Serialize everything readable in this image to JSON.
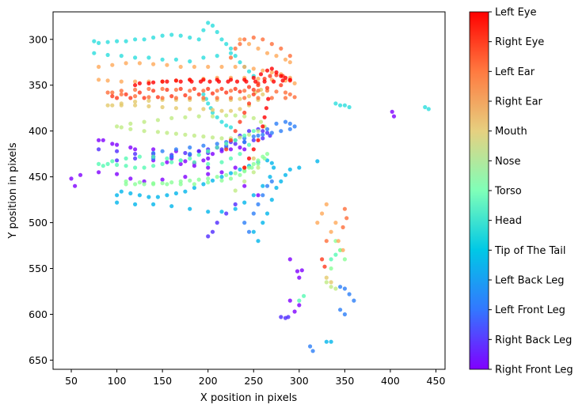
{
  "chart_data": {
    "type": "scatter",
    "title": "",
    "xlabel": "X position in pixels",
    "ylabel": "Y position in pixels",
    "xlim": [
      30,
      460
    ],
    "ylim": [
      660,
      270
    ],
    "y_inverted": true,
    "xticks": [
      50,
      100,
      150,
      200,
      250,
      300,
      350,
      400,
      450
    ],
    "yticks": [
      300,
      350,
      400,
      450,
      500,
      550,
      600,
      650
    ],
    "grid": false,
    "colormap": "rainbow",
    "colorbar_labels": [
      "Right Front Leg",
      "Right Back Leg",
      "Left Front Leg",
      "Left Back Leg",
      "Tip of The Tail",
      "Head",
      "Torso",
      "Nose",
      "Mouth",
      "Right Ear",
      "Left Ear",
      "Right Eye",
      "Left Eye"
    ],
    "series": [
      {
        "name": "Right Front Leg",
        "color": "#8000ff",
        "x": [
          50,
          54,
          60,
          80,
          100,
          115,
          130,
          150,
          175,
          200,
          215,
          230,
          240,
          235,
          225,
          215,
          205,
          200,
          195,
          185,
          175,
          160,
          140,
          120,
          100,
          85,
          80,
          95,
          115,
          140,
          165,
          190,
          210,
          200,
          185,
          170,
          155,
          140,
          240,
          255,
          290,
          298,
          300,
          303,
          290,
          300,
          295,
          402,
          404
        ],
        "y": [
          452,
          460,
          448,
          445,
          447,
          452,
          455,
          453,
          450,
          447,
          445,
          440,
          420,
          418,
          420,
          422,
          425,
          430,
          432,
          435,
          433,
          430,
          425,
          420,
          415,
          410,
          410,
          414,
          418,
          420,
          422,
          422,
          418,
          440,
          438,
          436,
          434,
          432,
          460,
          470,
          540,
          553,
          560,
          552,
          585,
          590,
          597,
          379,
          384
        ]
      },
      {
        "name": "Right Back Leg",
        "color": "#4f2bff",
        "x": [
          80,
          100,
          120,
          140,
          160,
          180,
          200,
          215,
          225,
          235,
          245,
          255,
          260,
          265,
          268,
          260,
          250,
          240,
          230,
          220,
          210,
          200,
          190,
          175,
          160,
          140,
          120,
          100,
          230,
          220,
          210,
          205,
          200,
          280,
          285,
          288
        ],
        "y": [
          420,
          422,
          425,
          428,
          428,
          426,
          424,
          420,
          412,
          405,
          400,
          398,
          400,
          402,
          405,
          408,
          410,
          412,
          414,
          416,
          418,
          420,
          422,
          424,
          426,
          428,
          430,
          432,
          480,
          490,
          500,
          510,
          515,
          603,
          604,
          603
        ]
      },
      {
        "name": "Left Front Leg",
        "color": "#2c7ef7",
        "x": [
          140,
          160,
          180,
          200,
          220,
          240,
          255,
          265,
          275,
          285,
          290,
          295,
          290,
          280,
          270,
          260,
          250,
          240,
          230,
          220,
          210,
          195,
          180,
          165,
          150,
          140,
          240,
          245,
          250,
          255,
          260,
          265,
          270,
          345,
          350,
          355,
          360,
          345,
          350,
          312,
          315
        ],
        "y": [
          430,
          428,
          425,
          422,
          418,
          412,
          405,
          398,
          392,
          390,
          392,
          395,
          398,
          400,
          402,
          404,
          406,
          408,
          410,
          412,
          414,
          416,
          418,
          420,
          422,
          424,
          500,
          510,
          490,
          480,
          470,
          460,
          455,
          570,
          572,
          578,
          585,
          595,
          600,
          635,
          640
        ]
      },
      {
        "name": "Left Back Leg",
        "color": "#00b5eb",
        "x": [
          100,
          120,
          140,
          160,
          180,
          200,
          215,
          230,
          240,
          250,
          260,
          268,
          272,
          270,
          265,
          255,
          245,
          235,
          225,
          215,
          205,
          195,
          185,
          175,
          165,
          155,
          145,
          135,
          125,
          115,
          105,
          100,
          250,
          255,
          260,
          265,
          270,
          275,
          280,
          285,
          290,
          300,
          320,
          330,
          335
        ],
        "y": [
          478,
          480,
          480,
          482,
          485,
          488,
          488,
          485,
          478,
          470,
          460,
          450,
          440,
          435,
          432,
          434,
          438,
          442,
          446,
          450,
          454,
          458,
          462,
          466,
          468,
          470,
          472,
          472,
          470,
          468,
          466,
          470,
          510,
          520,
          500,
          490,
          475,
          462,
          455,
          448,
          442,
          440,
          433,
          630,
          630
        ]
      },
      {
        "name": "Tip of The Tail",
        "color": "#2adddd",
        "x": [
          75,
          80,
          90,
          100,
          110,
          120,
          130,
          140,
          150,
          160,
          170,
          180,
          190,
          195,
          200,
          205,
          210,
          215,
          220,
          225,
          230,
          235,
          240,
          245,
          250,
          75,
          90,
          105,
          120,
          135,
          150,
          165,
          180,
          195,
          210,
          225,
          195,
          198,
          200,
          203,
          205,
          210,
          215,
          220,
          225,
          340,
          345,
          350,
          355,
          438,
          442
        ],
        "y": [
          302,
          304,
          303,
          302,
          302,
          300,
          300,
          298,
          296,
          295,
          296,
          298,
          300,
          290,
          282,
          285,
          292,
          300,
          305,
          310,
          318,
          325,
          330,
          335,
          340,
          315,
          317,
          318,
          320,
          320,
          322,
          322,
          324,
          320,
          318,
          315,
          360,
          365,
          370,
          375,
          380,
          385,
          390,
          394,
          396,
          370,
          372,
          372,
          374,
          374,
          376
        ]
      },
      {
        "name": "Head",
        "color": "#55fab3",
        "x": [
          80,
          95,
          110,
          125,
          140,
          155,
          170,
          185,
          200,
          215,
          225,
          235,
          245,
          250,
          240,
          230,
          220,
          210,
          200,
          190,
          180,
          170,
          160,
          150,
          140,
          130,
          120,
          110,
          100,
          90,
          85,
          300,
          305,
          335,
          340,
          345
        ],
        "y": [
          436,
          433,
          430,
          428,
          428,
          430,
          432,
          434,
          436,
          434,
          430,
          425,
          415,
          400,
          405,
          410,
          414,
          418,
          422,
          426,
          430,
          432,
          434,
          436,
          438,
          440,
          440,
          438,
          437,
          436,
          438,
          585,
          580,
          540,
          535,
          530
        ]
      },
      {
        "name": "Torso",
        "color": "#8aff97",
        "x": [
          110,
          125,
          140,
          155,
          170,
          185,
          200,
          215,
          225,
          235,
          240,
          245,
          250,
          255,
          260,
          265,
          262,
          255,
          248,
          240,
          230,
          220,
          210,
          200,
          190,
          180,
          170,
          160,
          150,
          140,
          130,
          120,
          110,
          340,
          345,
          350,
          335
        ],
        "y": [
          455,
          456,
          457,
          458,
          458,
          458,
          456,
          454,
          452,
          448,
          444,
          440,
          436,
          432,
          428,
          425,
          430,
          436,
          440,
          443,
          446,
          448,
          450,
          452,
          453,
          454,
          455,
          456,
          457,
          458,
          458,
          458,
          458,
          520,
          530,
          540,
          550
        ]
      },
      {
        "name": "Nose",
        "color": "#bfeb83",
        "x": [
          100,
          115,
          130,
          145,
          160,
          175,
          190,
          205,
          220,
          230,
          240,
          250,
          258,
          262,
          255,
          245,
          235,
          225,
          215,
          205,
          195,
          185,
          175,
          165,
          155,
          145,
          130,
          115,
          105,
          230,
          240,
          250,
          255,
          330,
          335,
          340
        ],
        "y": [
          395,
          392,
          390,
          388,
          386,
          385,
          384,
          384,
          383,
          383,
          384,
          386,
          390,
          395,
          400,
          404,
          407,
          408,
          408,
          407,
          406,
          405,
          404,
          403,
          402,
          401,
          400,
          398,
          396,
          465,
          455,
          445,
          440,
          565,
          570,
          572
        ]
      },
      {
        "name": "Mouth",
        "color": "#e3c96c",
        "x": [
          90,
          105,
          120,
          135,
          150,
          165,
          180,
          195,
          210,
          225,
          235,
          245,
          252,
          258,
          260,
          255,
          245,
          235,
          225,
          215,
          205,
          195,
          180,
          165,
          150,
          135,
          120,
          105,
          95,
          240,
          250,
          330,
          335
        ],
        "y": [
          372,
          370,
          368,
          367,
          366,
          366,
          366,
          366,
          366,
          366,
          365,
          362,
          358,
          355,
          360,
          366,
          372,
          376,
          378,
          378,
          377,
          376,
          376,
          375,
          374,
          373,
          372,
          372,
          372,
          440,
          430,
          560,
          565
        ]
      },
      {
        "name": "Right Ear",
        "color": "#ffa959",
        "x": [
          80,
          95,
          110,
          125,
          140,
          155,
          170,
          185,
          200,
          215,
          230,
          240,
          250,
          260,
          270,
          280,
          290,
          295,
          285,
          270,
          255,
          240,
          225,
          210,
          195,
          180,
          165,
          150,
          135,
          120,
          105,
          90,
          80,
          235,
          245,
          255,
          265,
          275,
          285,
          290,
          330,
          325,
          320,
          335,
          340,
          343,
          348
        ],
        "y": [
          330,
          328,
          326,
          326,
          327,
          328,
          330,
          330,
          330,
          330,
          330,
          330,
          332,
          334,
          336,
          338,
          342,
          348,
          345,
          344,
          343,
          342,
          342,
          342,
          343,
          344,
          345,
          346,
          346,
          346,
          346,
          345,
          344,
          300,
          305,
          310,
          315,
          318,
          322,
          325,
          480,
          490,
          500,
          510,
          500,
          520,
          530
        ]
      },
      {
        "name": "Left Ear",
        "color": "#ff6e3a",
        "x": [
          90,
          105,
          120,
          135,
          150,
          165,
          180,
          195,
          210,
          225,
          240,
          255,
          265,
          275,
          285,
          290,
          295,
          285,
          270,
          255,
          240,
          225,
          210,
          195,
          180,
          165,
          150,
          135,
          120,
          105,
          95,
          225,
          230,
          235,
          240,
          250,
          260,
          270,
          280,
          290,
          350,
          352,
          348,
          330
        ],
        "y": [
          358,
          356,
          355,
          354,
          354,
          355,
          356,
          356,
          356,
          356,
          356,
          356,
          356,
          357,
          358,
          360,
          363,
          364,
          364,
          364,
          364,
          364,
          364,
          364,
          364,
          364,
          364,
          363,
          362,
          360,
          358,
          320,
          310,
          305,
          300,
          298,
          300,
          305,
          310,
          318,
          485,
          495,
          505,
          520
        ]
      },
      {
        "name": "Right Eye",
        "color": "#ff3a1d",
        "x": [
          95,
          110,
          125,
          140,
          155,
          170,
          185,
          200,
          215,
          230,
          245,
          255,
          262,
          268,
          275,
          282,
          290,
          280,
          265,
          250,
          235,
          220,
          205,
          190,
          175,
          160,
          145,
          130,
          115,
          100,
          220,
          225,
          230,
          235,
          240,
          245,
          250,
          255,
          325,
          328
        ],
        "y": [
          362,
          360,
          358,
          356,
          355,
          354,
          354,
          354,
          354,
          354,
          352,
          348,
          343,
          340,
          339,
          340,
          345,
          350,
          353,
          355,
          357,
          358,
          359,
          360,
          361,
          362,
          363,
          364,
          364,
          364,
          420,
          410,
          400,
          390,
          380,
          370,
          360,
          350,
          540,
          548
        ]
      },
      {
        "name": "Left Eye",
        "color": "#ff0000",
        "x": [
          120,
          135,
          150,
          165,
          180,
          195,
          210,
          225,
          240,
          250,
          258,
          265,
          270,
          275,
          280,
          285,
          290,
          282,
          272,
          262,
          252,
          242,
          232,
          222,
          212,
          202,
          192,
          182,
          170,
          155,
          140,
          125,
          240,
          245,
          250,
          255,
          260,
          262,
          264,
          266
        ],
        "y": [
          350,
          348,
          346,
          345,
          344,
          344,
          344,
          344,
          344,
          342,
          338,
          334,
          332,
          336,
          340,
          342,
          344,
          345,
          346,
          346,
          346,
          346,
          346,
          346,
          346,
          346,
          346,
          346,
          346,
          346,
          347,
          348,
          440,
          430,
          420,
          410,
          395,
          385,
          375,
          365
        ]
      }
    ]
  }
}
